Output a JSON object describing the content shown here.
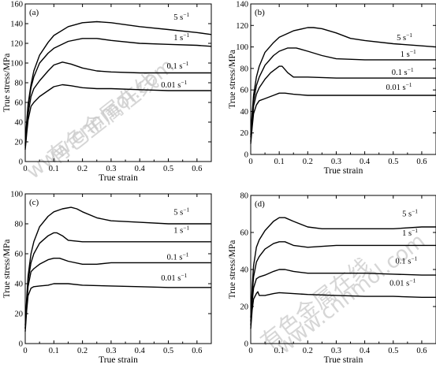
{
  "watermark": {
    "line1": "有色金属在线",
    "line2": "www.cnnmol.com"
  },
  "chart_data": [
    {
      "type": "line",
      "panel_label": "(a)",
      "xlabel": "True strain",
      "ylabel": "True stress/MPa",
      "xlim": [
        0,
        0.65
      ],
      "ylim": [
        0,
        160
      ],
      "xticks": [
        "0",
        "0.1",
        "0.2",
        "0.3",
        "0.4",
        "0.5",
        "0.6"
      ],
      "yticks": [
        "0",
        "20",
        "40",
        "60",
        "80",
        "100",
        "120",
        "140",
        "160"
      ],
      "series": [
        {
          "name": "5 s",
          "unit_sup": "−1",
          "x": [
            0,
            0.005,
            0.01,
            0.02,
            0.03,
            0.05,
            0.08,
            0.1,
            0.15,
            0.2,
            0.25,
            0.3,
            0.4,
            0.5,
            0.6,
            0.65
          ],
          "y": [
            18,
            40,
            58,
            78,
            92,
            108,
            121,
            128,
            137,
            141,
            142,
            141,
            137,
            134,
            131,
            129
          ]
        },
        {
          "name": "1 s",
          "unit_sup": "−1",
          "x": [
            0,
            0.005,
            0.01,
            0.02,
            0.03,
            0.05,
            0.08,
            0.1,
            0.15,
            0.2,
            0.25,
            0.3,
            0.4,
            0.5,
            0.6,
            0.65
          ],
          "y": [
            16,
            38,
            55,
            75,
            86,
            100,
            110,
            115,
            122,
            125,
            125,
            123,
            120,
            119,
            118,
            117
          ]
        },
        {
          "name": "0.1 s",
          "unit_sup": "−1",
          "x": [
            0,
            0.005,
            0.01,
            0.02,
            0.03,
            0.05,
            0.08,
            0.1,
            0.13,
            0.16,
            0.2,
            0.25,
            0.3,
            0.4,
            0.5,
            0.6,
            0.65
          ],
          "y": [
            14,
            32,
            48,
            66,
            74,
            82,
            92,
            98,
            101,
            99,
            95,
            92,
            91,
            90,
            90,
            90,
            90
          ]
        },
        {
          "name": "0.01 s",
          "unit_sup": "−1",
          "x": [
            0,
            0.005,
            0.01,
            0.02,
            0.03,
            0.05,
            0.08,
            0.1,
            0.13,
            0.16,
            0.2,
            0.25,
            0.3,
            0.4,
            0.5,
            0.6,
            0.65
          ],
          "y": [
            12,
            28,
            42,
            56,
            60,
            66,
            72,
            76,
            78,
            77,
            75,
            74,
            74,
            73,
            72,
            72,
            72
          ]
        }
      ]
    },
    {
      "type": "line",
      "panel_label": "(b)",
      "xlabel": "True strain",
      "ylabel": "True stress/MPa",
      "xlim": [
        0,
        0.65
      ],
      "ylim": [
        0,
        140
      ],
      "xticks": [
        "0",
        "0.1",
        "0.2",
        "0.3",
        "0.4",
        "0.5",
        "0.6"
      ],
      "yticks": [
        "0",
        "20",
        "40",
        "60",
        "80",
        "100",
        "120",
        "140"
      ],
      "series": [
        {
          "name": "5 s",
          "unit_sup": "−1",
          "x": [
            0,
            0.005,
            0.01,
            0.02,
            0.03,
            0.05,
            0.08,
            0.1,
            0.15,
            0.2,
            0.22,
            0.25,
            0.3,
            0.35,
            0.4,
            0.5,
            0.6,
            0.65
          ],
          "y": [
            18,
            38,
            55,
            72,
            82,
            95,
            104,
            109,
            115,
            118,
            118,
            117,
            113,
            108,
            106,
            103,
            101,
            100
          ]
        },
        {
          "name": "1 s",
          "unit_sup": "−1",
          "x": [
            0,
            0.005,
            0.01,
            0.02,
            0.03,
            0.05,
            0.08,
            0.1,
            0.13,
            0.16,
            0.2,
            0.25,
            0.3,
            0.4,
            0.5,
            0.6,
            0.65
          ],
          "y": [
            16,
            34,
            50,
            64,
            72,
            83,
            92,
            96,
            99,
            99,
            96,
            92,
            89,
            88,
            88,
            88,
            88
          ]
        },
        {
          "name": "0.1 s",
          "unit_sup": "−1",
          "x": [
            0,
            0.005,
            0.01,
            0.02,
            0.03,
            0.05,
            0.07,
            0.1,
            0.11,
            0.13,
            0.15,
            0.2,
            0.3,
            0.4,
            0.5,
            0.6,
            0.65
          ],
          "y": [
            12,
            30,
            45,
            56,
            62,
            70,
            76,
            82,
            82,
            76,
            72,
            72,
            71,
            71,
            71,
            71,
            71
          ]
        },
        {
          "name": "0.01 s",
          "unit_sup": "−1",
          "x": [
            0,
            0.005,
            0.01,
            0.02,
            0.03,
            0.05,
            0.08,
            0.1,
            0.12,
            0.15,
            0.2,
            0.3,
            0.4,
            0.5,
            0.6,
            0.65
          ],
          "y": [
            10,
            25,
            38,
            46,
            50,
            52,
            55,
            57,
            57,
            56,
            55,
            55,
            55,
            55,
            55,
            55
          ]
        }
      ]
    },
    {
      "type": "line",
      "panel_label": "(c)",
      "xlabel": "True strain",
      "ylabel": "True stress/MPa",
      "xlim": [
        0,
        0.65
      ],
      "ylim": [
        0,
        100
      ],
      "xticks": [
        "0",
        "0.1",
        "0.2",
        "0.3",
        "0.4",
        "0.5",
        "0.6"
      ],
      "yticks": [
        "0",
        "20",
        "40",
        "60",
        "80",
        "100"
      ],
      "series": [
        {
          "name": "5 s",
          "unit_sup": "−1",
          "x": [
            0,
            0.005,
            0.01,
            0.02,
            0.03,
            0.05,
            0.08,
            0.1,
            0.13,
            0.16,
            0.18,
            0.2,
            0.25,
            0.3,
            0.4,
            0.5,
            0.6,
            0.65
          ],
          "y": [
            12,
            30,
            45,
            60,
            68,
            78,
            85,
            88,
            90,
            91,
            90,
            88,
            84,
            82,
            81,
            80,
            80,
            80
          ]
        },
        {
          "name": "1 s",
          "unit_sup": "−1",
          "x": [
            0,
            0.005,
            0.01,
            0.02,
            0.03,
            0.05,
            0.08,
            0.1,
            0.11,
            0.13,
            0.15,
            0.2,
            0.3,
            0.4,
            0.5,
            0.6,
            0.65
          ],
          "y": [
            10,
            28,
            42,
            54,
            60,
            67,
            72,
            74,
            74,
            72,
            69,
            68,
            68,
            68,
            68,
            68,
            68
          ]
        },
        {
          "name": "0.1 s",
          "unit_sup": "−1",
          "x": [
            0,
            0.005,
            0.01,
            0.02,
            0.03,
            0.05,
            0.08,
            0.1,
            0.12,
            0.15,
            0.2,
            0.25,
            0.3,
            0.4,
            0.5,
            0.6,
            0.65
          ],
          "y": [
            10,
            25,
            38,
            48,
            50,
            53,
            56,
            57,
            57,
            55,
            53,
            53,
            54,
            54,
            54,
            54,
            54
          ]
        },
        {
          "name": "0.01 s",
          "unit_sup": "−1",
          "x": [
            0,
            0.005,
            0.01,
            0.02,
            0.03,
            0.05,
            0.08,
            0.1,
            0.15,
            0.2,
            0.3,
            0.4,
            0.5,
            0.6,
            0.65
          ],
          "y": [
            8,
            22,
            32,
            37,
            38,
            38.5,
            39,
            40,
            40,
            39,
            38.5,
            38,
            37.5,
            37.5,
            37.5
          ]
        }
      ]
    },
    {
      "type": "line",
      "panel_label": "(d)",
      "xlabel": "True strain",
      "ylabel": "True stress/MPa",
      "xlim": [
        0,
        0.65
      ],
      "ylim": [
        0,
        80
      ],
      "xticks": [
        "0",
        "0.1",
        "0.2",
        "0.3",
        "0.4",
        "0.5",
        "0.6"
      ],
      "yticks": [
        "0",
        "20",
        "40",
        "60",
        "80"
      ],
      "series": [
        {
          "name": "5 s",
          "unit_sup": "−1",
          "x": [
            0,
            0.005,
            0.01,
            0.02,
            0.03,
            0.05,
            0.08,
            0.1,
            0.12,
            0.15,
            0.2,
            0.25,
            0.3,
            0.4,
            0.5,
            0.6,
            0.65
          ],
          "y": [
            14,
            30,
            42,
            52,
            56,
            61,
            66,
            68,
            68,
            66,
            63,
            62,
            62,
            62,
            62,
            63,
            63
          ]
        },
        {
          "name": "1 s",
          "unit_sup": "−1",
          "x": [
            0,
            0.005,
            0.01,
            0.02,
            0.03,
            0.05,
            0.08,
            0.1,
            0.12,
            0.15,
            0.2,
            0.3,
            0.4,
            0.5,
            0.6,
            0.65
          ],
          "y": [
            12,
            26,
            36,
            44,
            47,
            51,
            54,
            55,
            55,
            53,
            52,
            53,
            53,
            53,
            53,
            53
          ]
        },
        {
          "name": "0.1 s",
          "unit_sup": "−1",
          "x": [
            0,
            0.005,
            0.01,
            0.02,
            0.03,
            0.05,
            0.08,
            0.1,
            0.12,
            0.15,
            0.2,
            0.3,
            0.4,
            0.5,
            0.6,
            0.65
          ],
          "y": [
            10,
            22,
            30,
            35,
            36,
            37,
            39,
            40,
            40,
            39,
            38,
            38,
            38,
            37.5,
            37,
            37
          ]
        },
        {
          "name": "0.01 s",
          "unit_sup": "−1",
          "x": [
            0,
            0.005,
            0.01,
            0.02,
            0.025,
            0.03,
            0.05,
            0.08,
            0.1,
            0.15,
            0.2,
            0.3,
            0.4,
            0.5,
            0.6,
            0.65
          ],
          "y": [
            8,
            18,
            24,
            27,
            28,
            26,
            26,
            27,
            27.5,
            27,
            26.5,
            26,
            25.5,
            25.5,
            25,
            25
          ]
        }
      ]
    }
  ]
}
